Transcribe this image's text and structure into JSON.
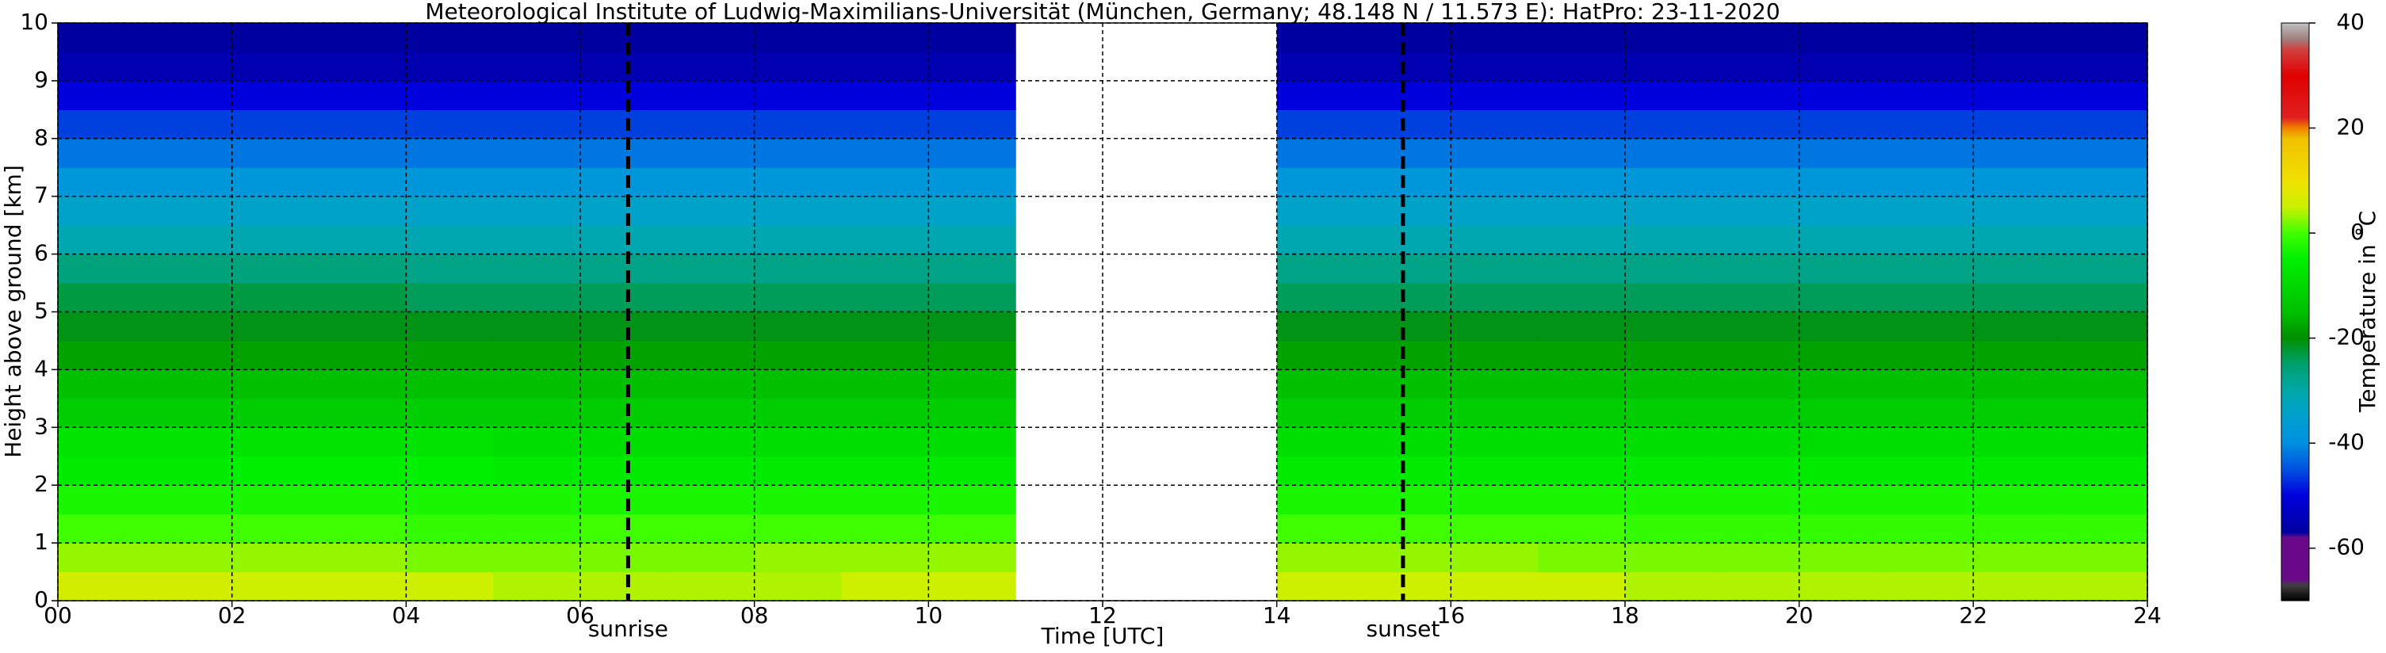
{
  "chart_data": {
    "type": "heatmap",
    "title": "Meteorological Institute of Ludwig-Maximilians-Universität (München, Germany; 48.148 N / 11.573 E):    HatPro: 23-11-2020",
    "xlabel": "Time [UTC]",
    "ylabel": "Height above ground [km]",
    "colorbar_label": "Temperature in ˚C",
    "xlim": [
      0,
      24
    ],
    "ylim": [
      0,
      10
    ],
    "xticks": [
      {
        "value": 0,
        "label": "00"
      },
      {
        "value": 2,
        "label": "02"
      },
      {
        "value": 4,
        "label": "04"
      },
      {
        "value": 6,
        "label": "06"
      },
      {
        "value": 8,
        "label": "08"
      },
      {
        "value": 10,
        "label": "10"
      },
      {
        "value": 12,
        "label": "12"
      },
      {
        "value": 14,
        "label": "14"
      },
      {
        "value": 16,
        "label": "16"
      },
      {
        "value": 18,
        "label": "18"
      },
      {
        "value": 20,
        "label": "20"
      },
      {
        "value": 22,
        "label": "22"
      },
      {
        "value": 24,
        "label": "24"
      }
    ],
    "yticks": [
      0,
      1,
      2,
      3,
      4,
      5,
      6,
      7,
      8,
      9,
      10
    ],
    "grid": true,
    "x": [
      0,
      1,
      2,
      3,
      4,
      5,
      6,
      7,
      8,
      9,
      10,
      11,
      12,
      13,
      14,
      15,
      16,
      17,
      18,
      19,
      20,
      21,
      22,
      23
    ],
    "y": [
      0,
      0.5,
      1,
      1.5,
      2,
      2.5,
      3,
      3.5,
      4,
      4.5,
      5,
      5.5,
      6,
      6.5,
      7,
      7.5,
      8,
      8.5,
      9,
      9.5
    ],
    "z": [
      [
        6,
        6,
        5,
        5,
        5,
        4,
        4,
        4,
        4,
        5,
        5,
        null,
        null,
        null,
        5,
        5,
        5,
        5,
        4,
        4,
        4,
        4,
        4,
        4
      ],
      [
        3,
        3,
        3,
        3,
        2,
        2,
        2,
        2,
        3,
        3,
        3,
        null,
        null,
        null,
        3,
        3,
        3,
        2,
        2,
        2,
        2,
        2,
        2,
        2
      ],
      [
        0,
        0,
        0,
        0,
        -1,
        -1,
        0,
        0,
        0,
        0,
        0,
        null,
        null,
        null,
        0,
        0,
        0,
        0,
        -1,
        -1,
        -1,
        -1,
        -1,
        -1
      ],
      [
        -3,
        -3,
        -3,
        -3,
        -3,
        -3,
        -3,
        -3,
        -3,
        -3,
        -3,
        null,
        null,
        null,
        -3,
        -3,
        -3,
        -3,
        -3,
        -3,
        -3,
        -3,
        -3,
        -3
      ],
      [
        -6,
        -6,
        -5,
        -5,
        -5,
        -6,
        -6,
        -6,
        -6,
        -6,
        -6,
        null,
        null,
        null,
        -6,
        -6,
        -6,
        -6,
        -6,
        -6,
        -6,
        -6,
        -6,
        -6
      ],
      [
        -8,
        -8,
        -8,
        -8,
        -8,
        -9,
        -9,
        -9,
        -9,
        -9,
        -9,
        null,
        null,
        null,
        -9,
        -9,
        -9,
        -9,
        -9,
        -9,
        -9,
        -9,
        -9,
        -9
      ],
      [
        -12,
        -12,
        -12,
        -12,
        -12,
        -12,
        -12,
        -12,
        -12,
        -12,
        -12,
        null,
        null,
        null,
        -12,
        -12,
        -12,
        -12,
        -12,
        -12,
        -12,
        -12,
        -12,
        -12
      ],
      [
        -15,
        -15,
        -15,
        -15,
        -15,
        -15,
        -15,
        -15,
        -15,
        -15,
        -15,
        null,
        null,
        null,
        -15,
        -15,
        -15,
        -15,
        -15,
        -15,
        -15,
        -15,
        -15,
        -15
      ],
      [
        -18,
        -18,
        -18,
        -18,
        -18,
        -18,
        -18,
        -18,
        -18,
        -18,
        -18,
        null,
        null,
        null,
        -18,
        -18,
        -18,
        -18,
        -18,
        -18,
        -18,
        -18,
        -18,
        -18
      ],
      [
        -21,
        -21,
        -21,
        -21,
        -21,
        -21,
        -21,
        -21,
        -21,
        -21,
        -21,
        null,
        null,
        null,
        -21,
        -21,
        -21,
        -21,
        -21,
        -21,
        -21,
        -21,
        -21,
        -21
      ],
      [
        -23,
        -23,
        -23,
        -23,
        -24,
        -24,
        -24,
        -24,
        -24,
        -24,
        -24,
        null,
        null,
        null,
        -24,
        -24,
        -24,
        -24,
        -24,
        -24,
        -24,
        -24,
        -24,
        -24
      ],
      [
        -26,
        -26,
        -26,
        -26,
        -27,
        -27,
        -27,
        -27,
        -27,
        -27,
        -27,
        null,
        null,
        null,
        -27,
        -27,
        -27,
        -27,
        -27,
        -27,
        -27,
        -27,
        -27,
        -27
      ],
      [
        -31,
        -31,
        -31,
        -31,
        -31,
        -31,
        -31,
        -31,
        -31,
        -31,
        -31,
        null,
        null,
        null,
        -31,
        -31,
        -31,
        -31,
        -31,
        -31,
        -31,
        -31,
        -31,
        -31
      ],
      [
        -34,
        -34,
        -34,
        -34,
        -34,
        -34,
        -34,
        -34,
        -34,
        -34,
        -34,
        null,
        null,
        null,
        -34,
        -34,
        -34,
        -34,
        -34,
        -34,
        -34,
        -34,
        -34,
        -34
      ],
      [
        -38,
        -38,
        -38,
        -38,
        -38,
        -38,
        -38,
        -38,
        -38,
        -38,
        -38,
        null,
        null,
        null,
        -38,
        -38,
        -38,
        -38,
        -38,
        -38,
        -38,
        -38,
        -38,
        -38
      ],
      [
        -42,
        -42,
        -42,
        -42,
        -42,
        -42,
        -42,
        -42,
        -42,
        -42,
        -42,
        null,
        null,
        null,
        -42,
        -42,
        -42,
        -42,
        -42,
        -42,
        -42,
        -42,
        -42,
        -42
      ],
      [
        -46,
        -46,
        -46,
        -46,
        -46,
        -46,
        -46,
        -46,
        -46,
        -46,
        -46,
        null,
        null,
        null,
        -46,
        -46,
        -46,
        -46,
        -46,
        -46,
        -46,
        -46,
        -46,
        -46
      ],
      [
        -50,
        -50,
        -50,
        -50,
        -50,
        -50,
        -50,
        -50,
        -50,
        -50,
        -50,
        null,
        null,
        null,
        -50,
        -50,
        -50,
        -50,
        -50,
        -50,
        -50,
        -50,
        -50,
        -50
      ],
      [
        -55,
        -55,
        -55,
        -55,
        -55,
        -55,
        -55,
        -55,
        -55,
        -55,
        -55,
        null,
        null,
        null,
        -55,
        -55,
        -55,
        -55,
        -55,
        -55,
        -55,
        -55,
        -55,
        -55
      ],
      [
        -57,
        -57,
        -57,
        -57,
        -57,
        -57,
        -57,
        -57,
        -57,
        -57,
        -57,
        null,
        null,
        null,
        -57,
        -57,
        -57,
        -57,
        -57,
        -57,
        -57,
        -57,
        -57,
        -57
      ]
    ],
    "clim": [
      -70,
      40
    ],
    "cticks": [
      -60,
      -40,
      -20,
      0,
      20,
      40
    ],
    "colormap": [
      {
        "value": -70,
        "color": "#000000"
      },
      {
        "value": -67,
        "color": "#404040"
      },
      {
        "value": -66,
        "color": "#6a0a8a"
      },
      {
        "value": -58,
        "color": "#6a0a8a"
      },
      {
        "value": -57,
        "color": "#0000a0"
      },
      {
        "value": -50,
        "color": "#0000dd"
      },
      {
        "value": -45,
        "color": "#0050e0"
      },
      {
        "value": -40,
        "color": "#0090e0"
      },
      {
        "value": -35,
        "color": "#00a0d0"
      },
      {
        "value": -30,
        "color": "#00a8a8"
      },
      {
        "value": -25,
        "color": "#00a070"
      },
      {
        "value": -20,
        "color": "#009000"
      },
      {
        "value": -15,
        "color": "#00c000"
      },
      {
        "value": -5,
        "color": "#00f000"
      },
      {
        "value": 0,
        "color": "#40ff00"
      },
      {
        "value": 5,
        "color": "#ccf000"
      },
      {
        "value": 10,
        "color": "#f0e000"
      },
      {
        "value": 18,
        "color": "#f0c000"
      },
      {
        "value": 20,
        "color": "#f08000"
      },
      {
        "value": 22,
        "color": "#e02020"
      },
      {
        "value": 30,
        "color": "#e00000"
      },
      {
        "value": 35,
        "color": "#d04040"
      },
      {
        "value": 37,
        "color": "#a08080"
      },
      {
        "value": 40,
        "color": "#c0c0c0"
      }
    ],
    "annotations": [
      {
        "x": 6.55,
        "text": "sunrise"
      },
      {
        "x": 15.45,
        "text": "sunset"
      }
    ]
  }
}
